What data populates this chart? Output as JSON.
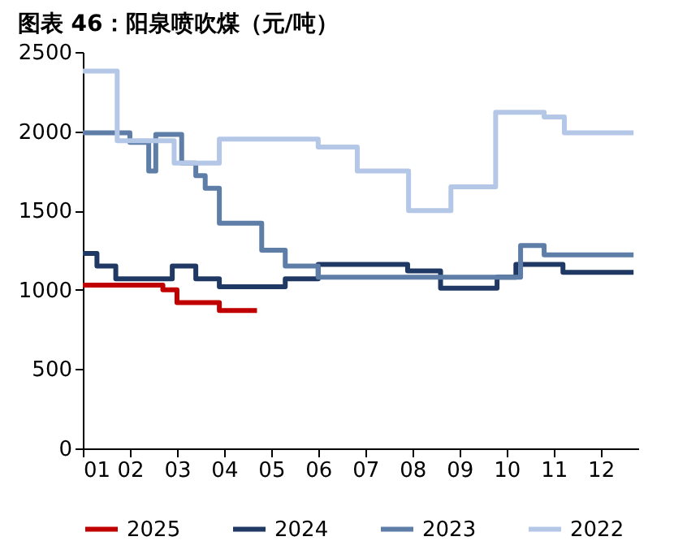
{
  "chart_data": {
    "type": "step",
    "title": "图表 46：阳泉喷吹煤（元/吨）",
    "xlim": [
      1,
      12.8
    ],
    "xticks": [
      {
        "value": 1,
        "label": "01"
      },
      {
        "value": 2,
        "label": "02"
      },
      {
        "value": 3,
        "label": "03"
      },
      {
        "value": 4,
        "label": "04"
      },
      {
        "value": 5,
        "label": "05"
      },
      {
        "value": 6,
        "label": "06"
      },
      {
        "value": 7,
        "label": "07"
      },
      {
        "value": 8,
        "label": "08"
      },
      {
        "value": 9,
        "label": "09"
      },
      {
        "value": 10,
        "label": "10"
      },
      {
        "value": 11,
        "label": "11"
      },
      {
        "value": 12,
        "label": "12"
      }
    ],
    "ylim": [
      0,
      2500
    ],
    "yticks": [
      0,
      500,
      1000,
      1500,
      2000,
      2500
    ],
    "grid": false,
    "legend": "bottom",
    "series": [
      {
        "name": "2025",
        "color": "#c00000",
        "x": [
          1,
          2.7,
          3.0,
          3.9,
          4.7
        ],
        "values": [
          1030,
          1000,
          920,
          870,
          870
        ]
      },
      {
        "name": "2024",
        "color": "#1f3864",
        "x": [
          1,
          1.3,
          1.7,
          2.9,
          3.4,
          3.9,
          5.3,
          6.0,
          7.9,
          8.6,
          9.8,
          10.2,
          11.2,
          12.7
        ],
        "values": [
          1230,
          1150,
          1070,
          1150,
          1070,
          1020,
          1070,
          1160,
          1120,
          1010,
          1080,
          1160,
          1110,
          1110
        ]
      },
      {
        "name": "2023",
        "color": "#5e7ea8",
        "x": [
          1,
          2.0,
          2.4,
          2.55,
          3.1,
          3.4,
          3.6,
          3.9,
          4.8,
          5.3,
          6.0,
          10.3,
          10.8,
          12.7
        ],
        "values": [
          1990,
          1930,
          1750,
          1980,
          1800,
          1720,
          1640,
          1420,
          1250,
          1150,
          1080,
          1280,
          1220,
          1220
        ]
      },
      {
        "name": "2022",
        "color": "#b4c7e7",
        "x": [
          1,
          1.73,
          2.94,
          3.9,
          6.0,
          6.83,
          7.92,
          8.82,
          9.77,
          10.8,
          11.23,
          12.7
        ],
        "values": [
          2380,
          1940,
          1800,
          1950,
          1900,
          1750,
          1500,
          1650,
          2120,
          2090,
          1990,
          1990
        ]
      }
    ]
  }
}
